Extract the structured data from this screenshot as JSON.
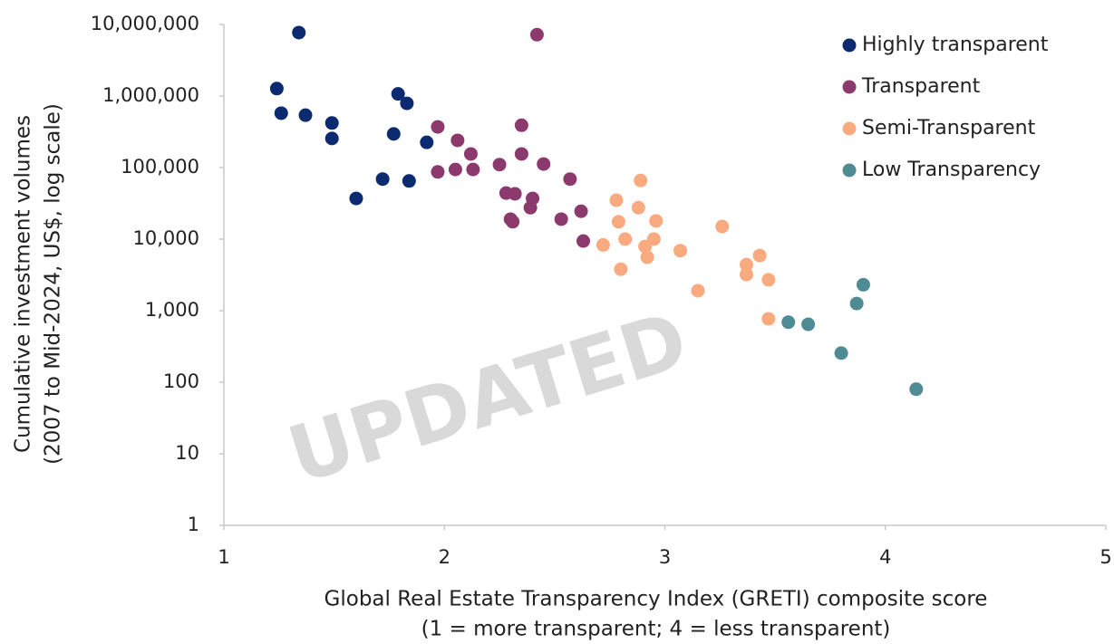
{
  "chart_data": {
    "type": "scatter",
    "x_label": [
      "Global Real Estate Transparency Index (GRETI) composite score",
      "(1 = more transparent; 4 = less transparent)"
    ],
    "y_label": [
      "Cumulative investment volumes",
      "(2007 to Mid-2024, US$, log  scale)"
    ],
    "annotation": "UPDATED",
    "xlim": [
      1,
      5
    ],
    "xticks": [
      1,
      2,
      3,
      4,
      5
    ],
    "ylim": [
      1,
      10000000
    ],
    "log_y": true,
    "yticks": [
      1,
      10,
      100,
      {
        "value": 1000,
        "label": "1,000"
      },
      {
        "value": 10000,
        "label": "10,000"
      },
      {
        "value": 100000,
        "label": "100,000"
      },
      {
        "value": 1000000,
        "label": "1,000,000"
      },
      {
        "value": 10000000,
        "label": "10,000,000"
      }
    ],
    "legend": "upper right",
    "series": [
      {
        "name": "Highly transparent",
        "color": "#0b2a6f",
        "x": [
          1.34,
          1.24,
          1.26,
          1.37,
          1.49,
          1.49,
          1.79,
          1.83,
          1.77,
          1.92,
          1.6,
          1.72,
          1.84
        ],
        "values": [
          7700000,
          1270000,
          575000,
          540000,
          420000,
          255000,
          1070000,
          790000,
          295000,
          225000,
          37000,
          69000,
          65000
        ]
      },
      {
        "name": "Transparent",
        "color": "#8c3a6d",
        "x": [
          2.42,
          1.97,
          2.35,
          2.06,
          2.12,
          2.35,
          2.45,
          2.25,
          1.97,
          2.05,
          2.13,
          2.57,
          2.28,
          2.32,
          2.4,
          2.39,
          2.3,
          2.31,
          2.53,
          2.62,
          2.63
        ],
        "values": [
          7200000,
          370000,
          390000,
          240000,
          155000,
          155000,
          112000,
          110000,
          87000,
          94000,
          94000,
          69000,
          44000,
          43000,
          37000,
          27500,
          19000,
          17500,
          19000,
          24500,
          9400
        ]
      },
      {
        "name": "Semi-Transparent",
        "color": "#f9aa7f",
        "x": [
          2.89,
          2.78,
          2.88,
          2.79,
          2.96,
          3.26,
          2.82,
          2.95,
          2.72,
          2.91,
          3.07,
          3.43,
          2.92,
          3.37,
          2.8,
          3.37,
          3.47,
          3.15,
          3.47
        ],
        "values": [
          66000,
          35000,
          27500,
          17500,
          18000,
          15000,
          10000,
          10000,
          8300,
          7900,
          6900,
          5900,
          5600,
          4400,
          3800,
          3200,
          2700,
          1900,
          770
        ]
      },
      {
        "name": "Low Transparency",
        "color": "#4e8b95",
        "x": [
          3.9,
          3.87,
          3.56,
          3.65,
          3.8,
          4.14
        ],
        "values": [
          2300,
          1260,
          690,
          645,
          255,
          80
        ]
      }
    ]
  }
}
